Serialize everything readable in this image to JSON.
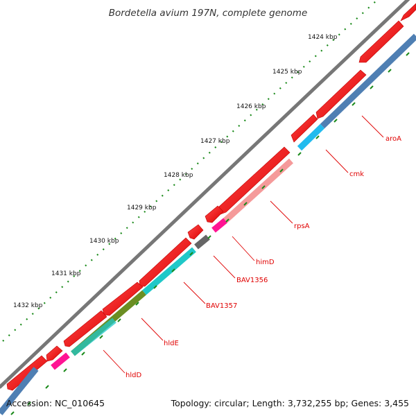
{
  "title": "Bordetella avium 197N, complete genome",
  "accession": "Accession: NC_010645",
  "summary": "Topology: circular; Length: 3,732,255 bp; Genes: 3,455",
  "colors": {
    "backbone": "#777777",
    "forward_cds": "#ff0000",
    "gene_label": "#e00000",
    "tick": "#1a8a1a"
  },
  "kbp_labels": [
    "1424 kbp",
    "1425 kbp",
    "1426 kbp",
    "1427 kbp",
    "1428 kbp",
    "1429 kbp",
    "1430 kbp",
    "1431 kbp",
    "1432 kbp"
  ],
  "gene_labels": [
    "aroA",
    "cmk",
    "rpsA",
    "himD",
    "BAV1356",
    "BAV1357",
    "hldE",
    "hldD"
  ],
  "cog_colors": {
    "aroA": "#4f7fb3",
    "cmk": "#22bbee",
    "rpsA": "#f59a9a",
    "himD": "#ff1493",
    "BAV1356": "#666666",
    "BAV1357": "#1fc8c8",
    "hldE": "#6b8e23",
    "hldD": "#1fc8c8"
  }
}
